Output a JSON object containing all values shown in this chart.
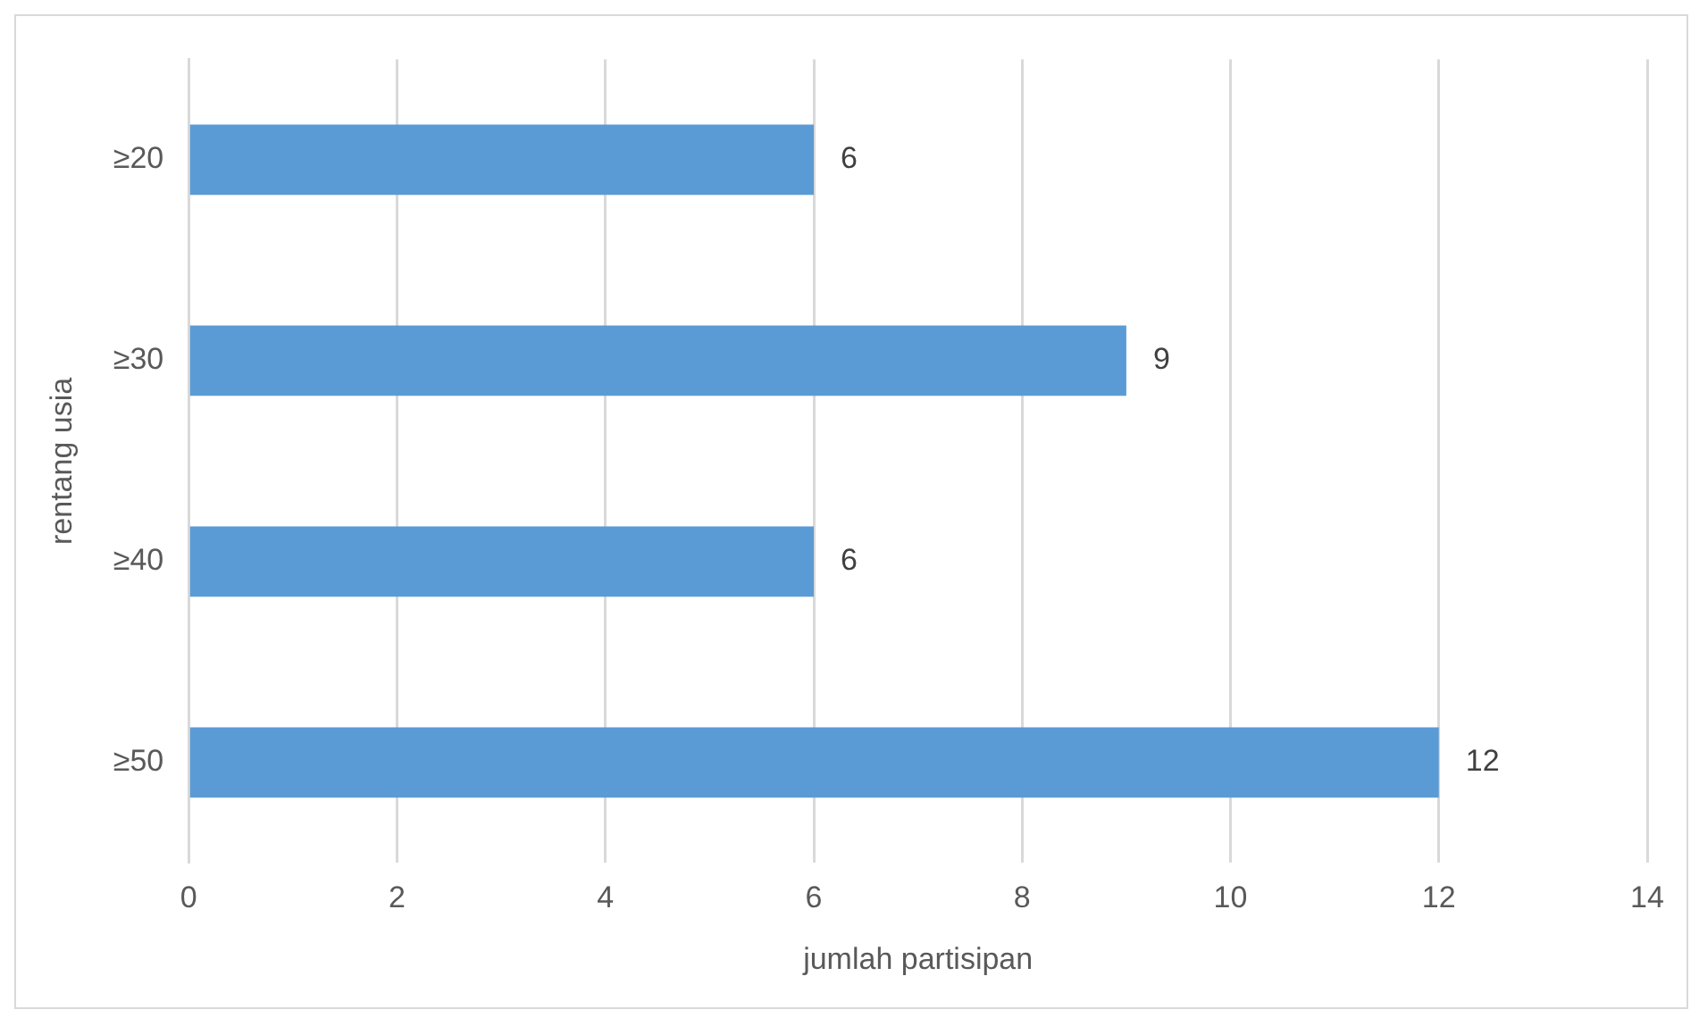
{
  "chart_data": {
    "type": "bar",
    "orientation": "horizontal",
    "xlabel": "jumlah partisipan",
    "ylabel": "rentang usia",
    "categories": [
      "≥20",
      "≥30",
      "≥40",
      "≥50"
    ],
    "values": [
      6,
      9,
      6,
      12
    ],
    "color": "#5b9bd5",
    "xlim": [
      0,
      14
    ],
    "xticks": [
      0,
      2,
      4,
      6,
      8,
      10,
      12,
      14
    ],
    "grid": "x",
    "data_labels": true,
    "legend": false
  }
}
